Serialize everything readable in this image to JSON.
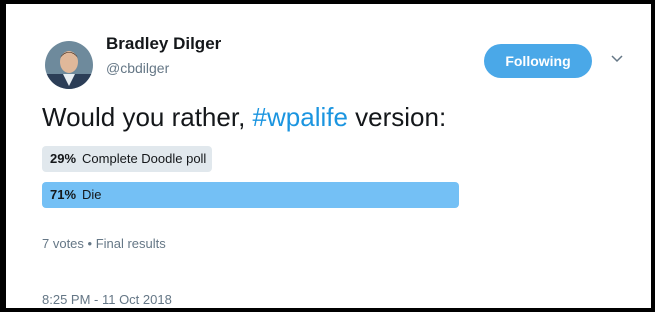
{
  "user": {
    "name": "Bradley Dilger",
    "handle": "@cbdilger"
  },
  "follow_button": "Following",
  "tweet": {
    "text_before": "Would you rather, ",
    "hashtag": "#wpalife",
    "text_after": " version:"
  },
  "poll": {
    "options": [
      {
        "percent": 29,
        "percent_label": "29%",
        "label": "Complete Doodle poll"
      },
      {
        "percent": 71,
        "percent_label": "71%",
        "label": "Die"
      }
    ],
    "summary": "7 votes • Final results"
  },
  "timestamp": "8:25 PM - 11 Oct 2018"
}
